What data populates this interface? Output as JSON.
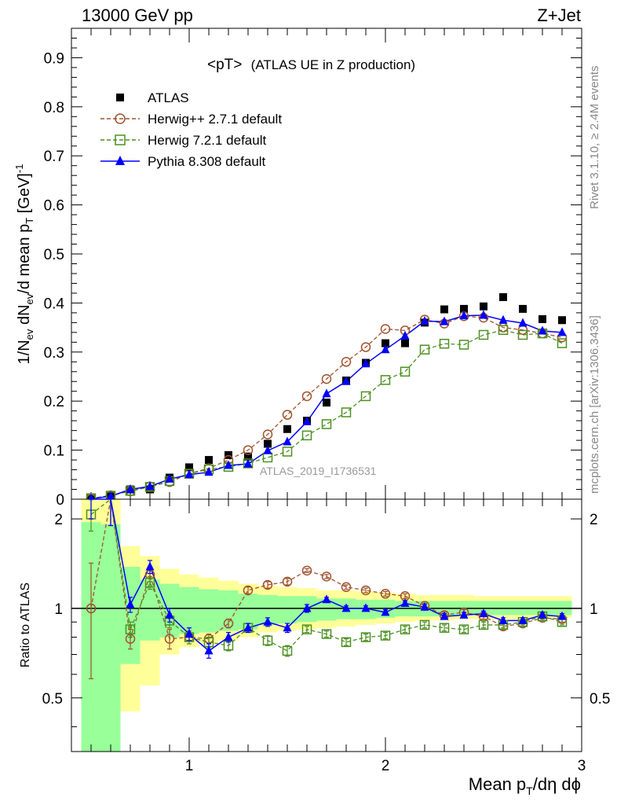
{
  "header": {
    "left": "13000 GeV pp",
    "right": "Z+Jet"
  },
  "side_text": {
    "rivet": "Rivet 3.1.10, ≥ 2.4M events",
    "mcplots": "mcplots.cern.ch [arXiv:1306.3436]"
  },
  "watermark": "ATLAS_2019_I1736531",
  "chart_data": [
    {
      "type": "line",
      "panel": "main",
      "title_main": "<pT>",
      "title_sub": "(ATLAS UE in Z production)",
      "ylabel": "1/N_ev dN_ev/d mean p_T [GeV]^-1",
      "xlim": [
        0.4,
        3.0
      ],
      "ylim": [
        0,
        0.96
      ],
      "yticks": [
        0,
        0.1,
        0.2,
        0.3,
        0.4,
        0.5,
        0.6,
        0.7,
        0.8,
        0.9
      ],
      "ytick_labels": [
        "0",
        "0.1",
        "0.2",
        "0.3",
        "0.4",
        "0.5",
        "0.6",
        "0.7",
        "0.8",
        "0.9"
      ],
      "legend_position": "top-left",
      "x": [
        0.5,
        0.6,
        0.7,
        0.8,
        0.9,
        1.0,
        1.1,
        1.2,
        1.3,
        1.4,
        1.5,
        1.6,
        1.7,
        1.8,
        1.9,
        2.0,
        2.1,
        2.2,
        2.3,
        2.4,
        2.5,
        2.6,
        2.7,
        2.8,
        2.9
      ],
      "series": [
        {
          "name": "ATLAS",
          "color": "#000000",
          "marker": "square-filled",
          "values": [
            0.001,
            0.006,
            0.02,
            0.02,
            0.044,
            0.065,
            0.08,
            0.09,
            0.087,
            0.113,
            0.143,
            0.16,
            0.197,
            0.242,
            0.278,
            0.318,
            0.318,
            0.36,
            0.387,
            0.388,
            0.393,
            0.412,
            0.388,
            0.367,
            0.365
          ]
        },
        {
          "name": "Herwig++ 2.7.1 default",
          "color": "#a0522d",
          "marker": "circle-open",
          "values": [
            0.001,
            0.008,
            0.016,
            0.026,
            0.035,
            0.052,
            0.063,
            0.08,
            0.1,
            0.132,
            0.172,
            0.21,
            0.245,
            0.28,
            0.31,
            0.347,
            0.344,
            0.366,
            0.358,
            0.373,
            0.37,
            0.35,
            0.345,
            0.338,
            0.33
          ]
        },
        {
          "name": "Herwig 7.2.1 default",
          "color": "#4c9020",
          "marker": "square-open",
          "values": [
            0.002,
            0.007,
            0.017,
            0.025,
            0.037,
            0.052,
            0.061,
            0.066,
            0.073,
            0.085,
            0.097,
            0.13,
            0.153,
            0.177,
            0.21,
            0.243,
            0.26,
            0.305,
            0.317,
            0.315,
            0.335,
            0.345,
            0.335,
            0.338,
            0.318
          ]
        },
        {
          "name": "Pythia 8.308 default",
          "color": "#0000ff",
          "marker": "triangle-filled",
          "values": [
            0.001,
            0.006,
            0.02,
            0.026,
            0.041,
            0.05,
            0.055,
            0.069,
            0.072,
            0.099,
            0.117,
            0.158,
            0.215,
            0.24,
            0.276,
            0.305,
            0.333,
            0.363,
            0.362,
            0.374,
            0.375,
            0.365,
            0.359,
            0.343,
            0.34
          ]
        }
      ]
    },
    {
      "type": "line",
      "panel": "ratio",
      "ylabel": "Ratio to ATLAS",
      "xlabel": "Mean p_T/dη dϕ",
      "xlim": [
        0.4,
        3.0
      ],
      "ylim": [
        0.33,
        2.33
      ],
      "yscale": "log",
      "yticks": [
        0.5,
        1,
        2
      ],
      "ytick_labels": [
        "0.5",
        "1",
        "2"
      ],
      "xticks": [
        1,
        2,
        3
      ],
      "xtick_labels": [
        "1",
        "2",
        "3"
      ],
      "x": [
        0.5,
        0.6,
        0.7,
        0.8,
        0.9,
        1.0,
        1.1,
        1.2,
        1.3,
        1.4,
        1.5,
        1.6,
        1.7,
        1.8,
        1.9,
        2.0,
        2.1,
        2.2,
        2.3,
        2.4,
        2.5,
        2.6,
        2.7,
        2.8,
        2.9
      ],
      "band_edges": [
        0.45,
        0.55,
        0.65,
        0.75,
        0.85,
        0.95,
        1.05,
        1.15,
        1.25,
        1.35,
        1.45,
        1.55,
        1.65,
        1.75,
        1.85,
        1.95,
        2.05,
        2.15,
        2.25,
        2.35,
        2.45,
        2.55,
        2.65,
        2.75,
        2.85,
        2.95
      ],
      "band_stat": {
        "lo": [
          0.33,
          0.33,
          0.65,
          0.78,
          0.8,
          0.82,
          0.83,
          0.84,
          0.85,
          0.88,
          0.89,
          0.9,
          0.91,
          0.92,
          0.92,
          0.93,
          0.94,
          0.94,
          0.94,
          0.95,
          0.95,
          0.95,
          0.95,
          0.95,
          0.95
        ],
        "hi": [
          1.95,
          1.92,
          1.38,
          1.25,
          1.21,
          1.18,
          1.16,
          1.15,
          1.12,
          1.11,
          1.1,
          1.1,
          1.08,
          1.08,
          1.07,
          1.07,
          1.06,
          1.06,
          1.06,
          1.06,
          1.06,
          1.06,
          1.06,
          1.06,
          1.06
        ]
      },
      "band_total": {
        "lo": [
          0.33,
          0.33,
          0.45,
          0.55,
          0.7,
          0.74,
          0.76,
          0.78,
          0.8,
          0.83,
          0.84,
          0.85,
          0.86,
          0.87,
          0.88,
          0.89,
          0.9,
          0.91,
          0.91,
          0.92,
          0.92,
          0.92,
          0.92,
          0.93,
          0.93
        ],
        "hi": [
          2.33,
          2.33,
          1.62,
          1.5,
          1.36,
          1.3,
          1.27,
          1.24,
          1.21,
          1.19,
          1.18,
          1.17,
          1.15,
          1.15,
          1.14,
          1.13,
          1.12,
          1.11,
          1.11,
          1.11,
          1.1,
          1.1,
          1.1,
          1.1,
          1.1
        ]
      },
      "series": [
        {
          "name": "Herwig++ 2.7.1 default",
          "color": "#a0522d",
          "marker": "circle-open",
          "values": [
            1.0,
            2.4,
            0.79,
            1.3,
            0.79,
            0.8,
            0.79,
            0.89,
            1.15,
            1.2,
            1.23,
            1.34,
            1.28,
            1.18,
            1.15,
            1.12,
            1.1,
            1.02,
            0.95,
            0.97,
            0.94,
            0.87,
            0.89,
            0.93,
            0.92
          ],
          "errors": [
            0.42,
            0.5,
            0.06,
            0.07,
            0.06,
            0.04,
            0.03,
            0.03,
            0.03,
            0.03,
            0.03,
            0.02,
            0.02,
            0.02,
            0.02,
            0.02,
            0.02,
            0.02,
            0.02,
            0.02,
            0.02,
            0.02,
            0.02,
            0.02,
            0.02
          ]
        },
        {
          "name": "Herwig 7.2.1 default",
          "color": "#4c9020",
          "marker": "square-open",
          "values": [
            2.07,
            2.4,
            0.85,
            1.22,
            0.91,
            0.8,
            0.77,
            0.75,
            0.86,
            0.78,
            0.72,
            0.85,
            0.82,
            0.77,
            0.8,
            0.81,
            0.85,
            0.88,
            0.86,
            0.85,
            0.88,
            0.88,
            0.9,
            0.94,
            0.9
          ],
          "errors": [
            0.25,
            0.5,
            0.05,
            0.06,
            0.05,
            0.04,
            0.03,
            0.03,
            0.03,
            0.03,
            0.03,
            0.02,
            0.02,
            0.02,
            0.02,
            0.02,
            0.02,
            0.02,
            0.02,
            0.02,
            0.02,
            0.02,
            0.02,
            0.02,
            0.02
          ]
        },
        {
          "name": "Pythia 8.308 default",
          "color": "#0000ff",
          "marker": "triangle-filled",
          "values": [
            2.4,
            2.4,
            1.03,
            1.38,
            0.95,
            0.82,
            0.72,
            0.8,
            0.86,
            0.9,
            0.86,
            1.0,
            1.07,
            1.0,
            1.0,
            0.97,
            1.04,
            1.01,
            0.94,
            0.95,
            0.96,
            0.91,
            0.91,
            0.95,
            0.94
          ],
          "errors": [
            0.4,
            0.5,
            0.06,
            0.07,
            0.05,
            0.04,
            0.04,
            0.03,
            0.03,
            0.03,
            0.03,
            0.03,
            0.02,
            0.02,
            0.02,
            0.02,
            0.02,
            0.02,
            0.02,
            0.02,
            0.02,
            0.02,
            0.02,
            0.02,
            0.02
          ]
        }
      ]
    }
  ]
}
